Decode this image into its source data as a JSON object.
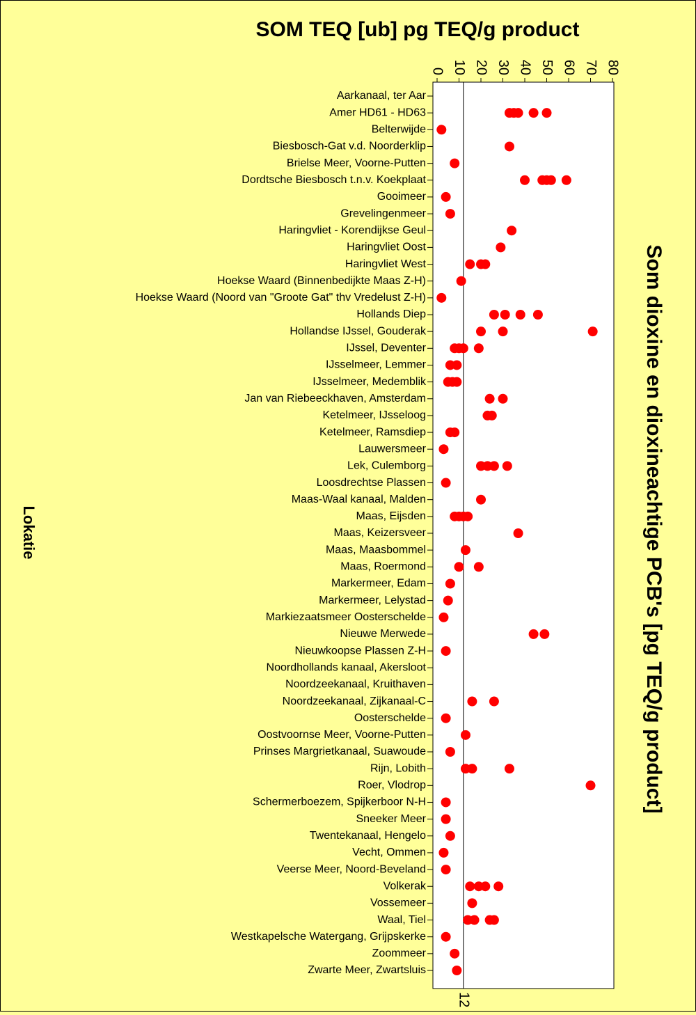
{
  "chart_data": {
    "type": "dot",
    "title": "SOM TEQ [ub] pg TEQ/g product",
    "x_label": "Som dioxine en dioxineachtige PCB's [pg TEQ/g product]",
    "y_label": "Lokatie",
    "color": "#ff0000",
    "xlim": [
      0,
      80
    ],
    "xticks": [
      0,
      10,
      20,
      30,
      40,
      50,
      60,
      70,
      80
    ],
    "reference_line": 12,
    "categories": [
      "Aarkanaal, ter Aar",
      "Amer HD61 - HD63",
      "Belterwijde",
      "Biesbosch-Gat v.d. Noorderklip",
      "Brielse Meer, Voorne-Putten",
      "Dordtsche Biesbosch t.n.v. Koekplaat",
      "Gooimeer",
      "Grevelingenmeer",
      "Haringvliet - Korendijkse Geul",
      "Haringvliet Oost",
      "Haringvliet West",
      "Hoekse Waard (Binnenbedijkte Maas Z-H)",
      "Hoekse Waard (Noord van \"Groote Gat\" thv Vredelust Z-H)",
      "Hollands Diep",
      "Hollandse IJssel, Gouderak",
      "IJssel, Deventer",
      "IJsselmeer, Lemmer",
      "IJsselmeer, Medemblik",
      "Jan van Riebeeckhaven, Amsterdam",
      "Ketelmeer, IJsseloog",
      "Ketelmeer, Ramsdiep",
      "Lauwersmeer",
      "Lek, Culemborg",
      "Loosdrechtse Plassen",
      "Maas-Waal kanaal, Malden",
      "Maas, Eijsden",
      "Maas, Keizersveer",
      "Maas, Maasbommel",
      "Maas, Roermond",
      "Markermeer, Edam",
      "Markermeer, Lelystad",
      "Markiezaatsmeer Oosterschelde",
      "Nieuwe Merwede",
      "Nieuwkoopse Plassen Z-H",
      "Noordhollands kanaal, Akersloot",
      "Noordzeekanaal, Kruithaven",
      "Noordzeekanaal, Zijkanaal-C",
      "Oosterschelde",
      "Oostvoornse Meer, Voorne-Putten",
      "Prinses Margrietkanaal, Suawoude",
      "Rijn, Lobith",
      "Roer, Vlodrop",
      "Schermerboezem, Spijkerboor N-H",
      "Sneeker Meer",
      "Twentekanaal, Hengelo",
      "Vecht, Ommen",
      "Veerse Meer, Noord-Beveland",
      "Volkerak",
      "Vossemeer",
      "Waal, Tiel",
      "Westkapelsche Watergang, Grijpskerke",
      "Zoommeer",
      "Zwarte Meer, Zwartsluis"
    ],
    "values": [
      [],
      [
        33,
        35,
        37,
        44,
        50
      ],
      [
        2
      ],
      [
        33
      ],
      [
        8
      ],
      [
        40,
        48,
        50,
        52,
        59
      ],
      [
        4
      ],
      [
        6
      ],
      [
        34
      ],
      [
        29
      ],
      [
        15,
        20,
        22
      ],
      [
        11
      ],
      [
        2
      ],
      [
        26,
        31,
        38,
        46
      ],
      [
        20,
        30,
        71
      ],
      [
        8,
        10,
        12,
        19
      ],
      [
        6,
        9
      ],
      [
        5,
        7,
        9
      ],
      [
        24,
        30
      ],
      [
        23,
        25
      ],
      [
        6,
        8
      ],
      [
        3
      ],
      [
        20,
        23,
        26,
        32
      ],
      [
        4
      ],
      [
        20
      ],
      [
        8,
        10,
        12,
        14
      ],
      [
        37
      ],
      [
        13
      ],
      [
        10,
        19
      ],
      [
        6
      ],
      [
        5
      ],
      [
        3
      ],
      [
        44,
        49
      ],
      [
        4
      ],
      [],
      [],
      [
        16,
        26
      ],
      [
        4
      ],
      [
        13
      ],
      [
        6
      ],
      [
        13,
        16,
        33
      ],
      [
        70
      ],
      [
        4
      ],
      [
        4
      ],
      [
        6
      ],
      [
        3
      ],
      [
        4
      ],
      [
        15,
        19,
        22,
        28
      ],
      [
        16
      ],
      [
        14,
        17,
        24,
        26
      ],
      [
        4
      ],
      [
        8
      ],
      [
        9
      ]
    ]
  }
}
